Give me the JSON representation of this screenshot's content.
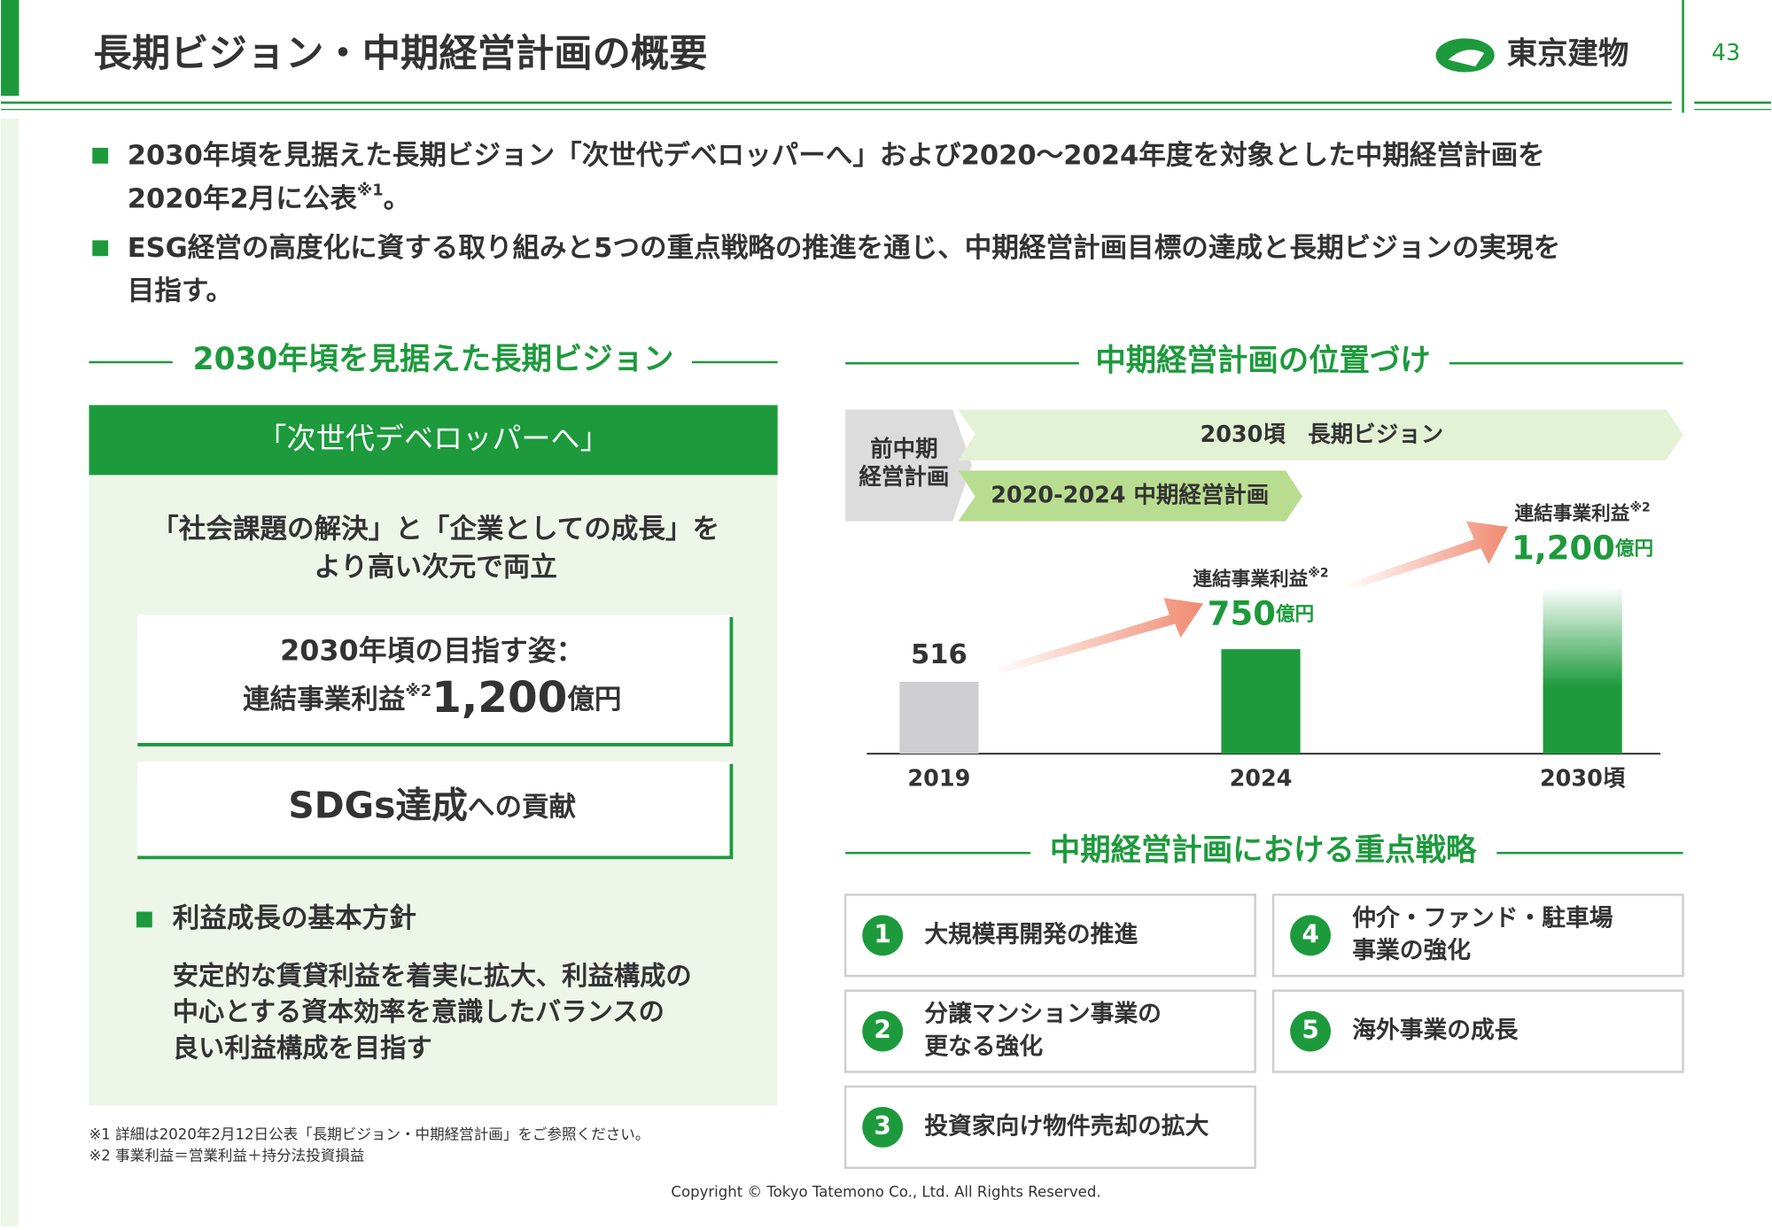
{
  "header": {
    "title": "長期ビジョン・中期経営計画の概要",
    "logo": "東京建物",
    "page": "43"
  },
  "bullets": [
    {
      "lines": [
        "2030年頃を見据えた長期ビジョン「次世代デベロッパーへ」および2020～2024年度を対象とした中期経営計画を",
        "2020年2月に公表"
      ],
      "note": "※1",
      "end": "。"
    },
    {
      "lines": [
        "ESG経営の高度化に資する取り組みと5つの重点戦略の推進を通じ、中期経営計画目標の達成と長期ビジョンの実現を",
        "目指す。"
      ]
    }
  ],
  "vision": {
    "heading": "2030年頃を見据えた長期ビジョン",
    "banner": "「次世代デベロッパーへ」",
    "lines": [
      "「社会課題の解決」と「企業としての成長」を",
      "より高い次元で両立"
    ],
    "goal": {
      "title": "2030年頃の目指す姿：",
      "label": "連結事業利益",
      "note": "※2",
      "value": "1,200",
      "unit": "億円"
    },
    "sdgs": {
      "main": "SDGs達成",
      "sub": "への貢献"
    },
    "policy": {
      "title": "利益成長の基本方針",
      "lines": [
        "安定的な賃貸利益を着実に拡大、利益構成の",
        "中心とする資本効率を意識したバランスの",
        "良い利益構成を目指す"
      ]
    }
  },
  "plan": {
    "heading": "中期経営計画の位置づけ",
    "previous": [
      "前中期",
      "経営計画"
    ],
    "long": "2030頃　長期ビジョン",
    "mid": "2020-2024 中期経営計画",
    "chart": {
      "type": "bar",
      "categories": [
        "2019",
        "2024",
        "2030頃"
      ],
      "values": [
        516,
        750,
        1200
      ],
      "value_labels": [
        "516",
        "750",
        "1,200"
      ],
      "label": "連結事業利益",
      "note": "※2",
      "unit": "億円"
    }
  },
  "strategies": {
    "heading": "中期経営計画における重点戦略",
    "items": [
      {
        "number": "1",
        "lines": [
          "大規模再開発の推進"
        ]
      },
      {
        "number": "2",
        "lines": [
          "分譲マンション事業の",
          "更なる強化"
        ]
      },
      {
        "number": "3",
        "lines": [
          "投資家向け物件売却の拡大"
        ]
      },
      {
        "number": "4",
        "lines": [
          "仲介・ファンド・駐車場",
          "事業の強化"
        ]
      },
      {
        "number": "5",
        "lines": [
          "海外事業の成長"
        ]
      }
    ]
  },
  "footnotes": [
    "※1 詳細は2020年2月12日公表「長期ビジョン・中期経営計画」をご参照ください。",
    "※2 事業利益＝営業利益＋持分法投資損益"
  ],
  "copyright": "Copyright © Tokyo Tatemono Co., Ltd. All Rights Reserved."
}
